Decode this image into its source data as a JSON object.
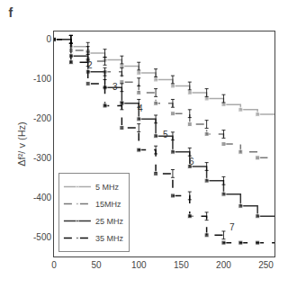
{
  "chart_data": {
    "type": "line",
    "title": "f",
    "y_label": "Δf²/ v (Hz)",
    "x": [
      0,
      20,
      20,
      40,
      40,
      60,
      60,
      80,
      80,
      100,
      100,
      120,
      120,
      140,
      140,
      160,
      160,
      180,
      180,
      200,
      200,
      220,
      220,
      240,
      240,
      260
    ],
    "series": [
      {
        "name": "5 MHz",
        "color": "#aaaaaa",
        "line_style": "solid",
        "marker": "square",
        "values": [
          0,
          0,
          -18,
          -18,
          -35,
          -35,
          -52,
          -52,
          -68,
          -68,
          -85,
          -85,
          -102,
          -102,
          -118,
          -118,
          -135,
          -135,
          -150,
          -150,
          -165,
          -165,
          -178,
          -178,
          -190,
          -190
        ],
        "errors": [
          null,
          10,
          null,
          10,
          null,
          10,
          null,
          10,
          null,
          10,
          null,
          10,
          null,
          10,
          null,
          10,
          null,
          10,
          null,
          10,
          null,
          null,
          null,
          null,
          null,
          null
        ]
      },
      {
        "name": "15MHz",
        "color": "#777777",
        "line_style": "dashed",
        "marker": "square",
        "values": [
          0,
          0,
          -28,
          -28,
          -55,
          -55,
          -82,
          -82,
          -108,
          -108,
          -135,
          -135,
          -162,
          -162,
          -188,
          -188,
          -215,
          -215,
          -240,
          -240,
          -265,
          -265,
          -285,
          -285,
          -300,
          -300
        ],
        "errors": [
          null,
          10,
          null,
          10,
          null,
          10,
          null,
          10,
          null,
          10,
          null,
          10,
          null,
          10,
          null,
          10,
          null,
          10,
          null,
          10,
          null,
          null,
          null,
          null,
          null,
          null
        ]
      },
      {
        "name": "25 MHz",
        "color": "#333333",
        "line_style": "solid",
        "marker": "square",
        "values": [
          0,
          0,
          -42,
          -42,
          -82,
          -82,
          -122,
          -122,
          -162,
          -162,
          -202,
          -202,
          -245,
          -245,
          -285,
          -285,
          -322,
          -322,
          -358,
          -358,
          -392,
          -392,
          -422,
          -422,
          -448,
          -448
        ],
        "errors": [
          null,
          10,
          null,
          10,
          null,
          10,
          null,
          10,
          null,
          10,
          null,
          10,
          null,
          10,
          null,
          10,
          null,
          10,
          null,
          10,
          null,
          null,
          null,
          null,
          null,
          null
        ]
      },
      {
        "name": "35 MHz",
        "color": "#111111",
        "line_style": "dashed",
        "marker": "square",
        "values": [
          0,
          0,
          -58,
          -58,
          -112,
          -112,
          -168,
          -168,
          -224,
          -224,
          -280,
          -280,
          -340,
          -340,
          -396,
          -396,
          -448,
          -448,
          -496,
          -496,
          -515,
          -515,
          -515,
          -515,
          -515,
          -515
        ],
        "errors": [
          null,
          10,
          null,
          10,
          null,
          10,
          null,
          10,
          null,
          10,
          null,
          10,
          null,
          10,
          null,
          10,
          null,
          10,
          null,
          10,
          null,
          null,
          null,
          null,
          null,
          null
        ]
      }
    ],
    "annotations": [
      {
        "text": "2",
        "x": 42,
        "y": -65
      },
      {
        "text": "3",
        "x": 72,
        "y": -120
      },
      {
        "text": "4",
        "x": 102,
        "y": -175
      },
      {
        "text": "5",
        "x": 132,
        "y": -240
      },
      {
        "text": "6",
        "x": 162,
        "y": -310
      },
      {
        "text": "7",
        "x": 210,
        "y": -475
      }
    ],
    "xlim": [
      0,
      260
    ],
    "ylim": [
      -550,
      20
    ],
    "xticks": [
      0,
      50,
      100,
      150,
      200,
      250
    ],
    "yticks": [
      0,
      -100,
      -200,
      -300,
      -400,
      -500
    ],
    "grid": false,
    "legend": "lower left"
  }
}
